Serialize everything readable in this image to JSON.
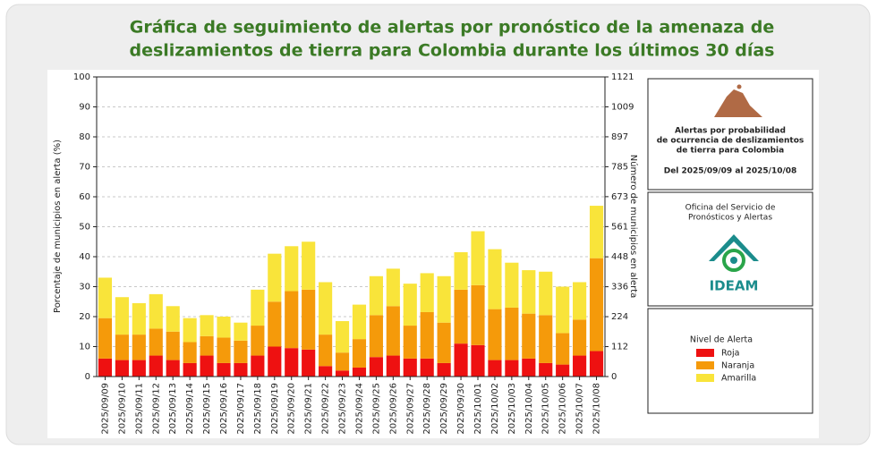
{
  "chart_data": {
    "type": "bar",
    "stacked": true,
    "title": [
      "Gráfica de seguimiento de alertas por pronóstico de la amenaza de",
      "deslizamientos de tierra para Colombia durante los últimos 30 días"
    ],
    "ylabel": "Porcentaje de municipios en alerta (%)",
    "y2label": "Número de municipios en alerta",
    "categories": [
      "2025/09/09",
      "2025/09/10",
      "2025/09/11",
      "2025/09/12",
      "2025/09/13",
      "2025/09/14",
      "2025/09/15",
      "2025/09/16",
      "2025/09/17",
      "2025/09/18",
      "2025/09/19",
      "2025/09/20",
      "2025/09/21",
      "2025/09/22",
      "2025/09/23",
      "2025/09/24",
      "2025/09/25",
      "2025/09/26",
      "2025/09/27",
      "2025/09/28",
      "2025/09/29",
      "2025/09/30",
      "2025/10/01",
      "2025/10/02",
      "2025/10/03",
      "2025/10/04",
      "2025/10/05",
      "2025/10/06",
      "2025/10/07",
      "2025/10/08"
    ],
    "series": [
      {
        "name": "Roja",
        "color": "#ee1111",
        "values": [
          6,
          5.5,
          5.5,
          7,
          5.5,
          4.5,
          7,
          4.5,
          4.5,
          7,
          10,
          9.5,
          9,
          3.5,
          2,
          3,
          6.5,
          7,
          6,
          6,
          4.5,
          11,
          10.5,
          5.5,
          5.5,
          6,
          4.5,
          4,
          7,
          8.5
        ]
      },
      {
        "name": "Naranja",
        "color": "#f59a0a",
        "values": [
          13.5,
          8.5,
          8.5,
          9,
          9.5,
          7,
          6.5,
          8.5,
          7.5,
          10,
          15,
          19,
          20,
          10.5,
          6,
          9.5,
          14,
          16.5,
          11,
          15.5,
          13.5,
          18,
          20,
          17,
          17.5,
          15,
          16,
          10.5,
          12,
          31
        ]
      },
      {
        "name": "Amarilla",
        "color": "#f9e43a",
        "values": [
          13.5,
          12.5,
          10.5,
          11.5,
          8.5,
          8,
          7,
          7,
          6,
          12,
          16,
          15,
          16,
          17.5,
          10.5,
          11.5,
          13,
          12.5,
          14,
          13,
          15.5,
          12.5,
          18,
          20,
          15,
          14.5,
          14.5,
          15.5,
          12.5,
          17.5
        ]
      }
    ],
    "ylim": [
      0,
      100
    ],
    "yticks": [
      0,
      10,
      20,
      30,
      40,
      50,
      60,
      70,
      80,
      90,
      100
    ],
    "y2lim": [
      0,
      1121
    ],
    "y2ticks": [
      0,
      112,
      224,
      336,
      448,
      561,
      673,
      785,
      897,
      1009,
      1121
    ],
    "grid": true,
    "legend_title": "Nivel de Alerta"
  },
  "panel": {
    "heading": [
      "Alertas por probabilidad",
      "de ocurrencia de deslizamientos",
      "de tierra para Colombia"
    ],
    "period": "Del 2025/09/09 al 2025/10/08",
    "office": [
      "Oficina del Servicio de",
      "Pronósticos y Alertas"
    ],
    "logo_text": "IDEAM"
  }
}
